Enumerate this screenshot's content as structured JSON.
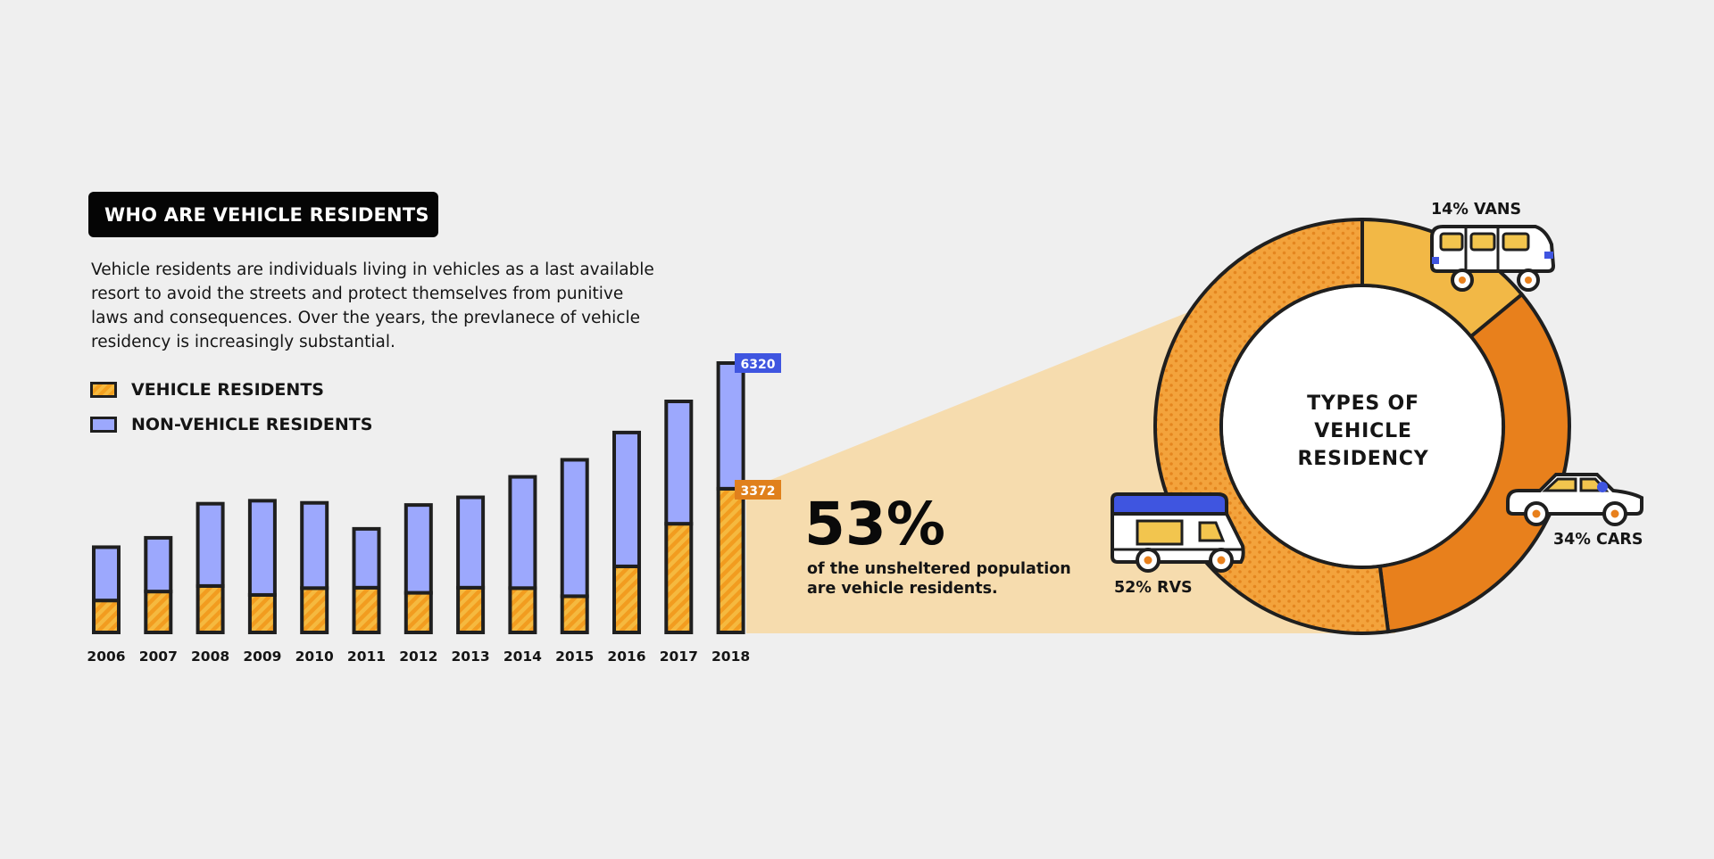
{
  "header": {
    "title": "WHO ARE VEHICLE RESIDENTS"
  },
  "description": "Vehicle residents are individuals living in vehicles as a last available resort to avoid the streets and protect themselves from punitive laws and consequences. Over the years, the prevlanece of vehicle residency is increasingly substantial.",
  "legend": {
    "vehicle_label": "VEHICLE RESIDENTS",
    "non_vehicle_label": "NON-VEHICLE RESIDENTS"
  },
  "stat": {
    "percent": "53%",
    "text": "of the unsheltered population are vehicle residents."
  },
  "donut": {
    "center_title": "TYPES OF VEHICLE RESIDENCY",
    "labels": {
      "vans": "14% VANS",
      "cars": "34% CARS",
      "rvs": "52% RVS"
    }
  },
  "colors": {
    "vehicle": "#f5a623",
    "non_vehicle": "#9ca8fd",
    "outline": "#1f1f1f",
    "highlight": "#f6dcae",
    "vans": "#f2b846",
    "cars": "#e8801c",
    "rvs": "#f3a33c",
    "tag_blue": "#3f55e0",
    "tag_orange": "#e0801c"
  },
  "chart_data": [
    {
      "type": "bar",
      "stacked": true,
      "categories": [
        "2006",
        "2007",
        "2008",
        "2009",
        "2010",
        "2011",
        "2012",
        "2013",
        "2014",
        "2015",
        "2016",
        "2017",
        "2018"
      ],
      "series": [
        {
          "name": "VEHICLE RESIDENTS",
          "values": [
            750,
            960,
            1090,
            880,
            1040,
            1050,
            930,
            1050,
            1040,
            850,
            1550,
            2550,
            3372
          ]
        },
        {
          "name": "NON-VEHICLE RESIDENTS",
          "values": [
            1250,
            1260,
            1930,
            2210,
            2000,
            1380,
            2060,
            2120,
            2610,
            3200,
            3140,
            2870,
            2948
          ]
        }
      ],
      "data_labels": {
        "total_2018": "6320",
        "vehicle_2018": "3372"
      },
      "ylim": [
        0,
        6320
      ]
    },
    {
      "type": "pie",
      "categories": [
        "VANS",
        "CARS",
        "RVS"
      ],
      "values": [
        14,
        34,
        52
      ],
      "labels": [
        "14% VANS",
        "34% CARS",
        "52% RVS"
      ]
    }
  ]
}
